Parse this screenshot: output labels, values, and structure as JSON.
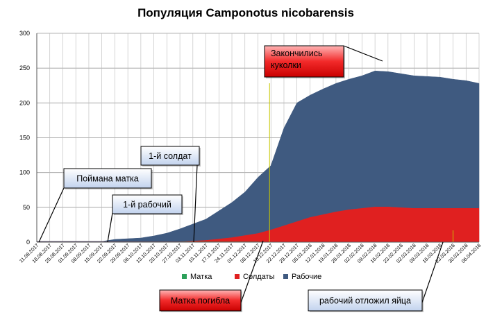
{
  "chart_data": {
    "type": "area",
    "title": "Популяция Camponotus nicobarensis",
    "ylim": [
      0,
      300
    ],
    "yticks": [
      0,
      50,
      100,
      150,
      200,
      250,
      300
    ],
    "grid": true,
    "legend_position": "bottom",
    "categories": [
      "11.08.2017",
      "18.08.2017",
      "25.08.2017",
      "01.09.2017",
      "08.09.2017",
      "15.09.2017",
      "22.09.2017",
      "29.09.2017",
      "06.10.2017",
      "13.10.2017",
      "20.10.2017",
      "27.10.2017",
      "03.11.2017",
      "10.11.2017",
      "17.11.2017",
      "24.11.2017",
      "01.12.2017",
      "08.12.2017",
      "15.12.2017",
      "22.12.2017",
      "29.12.2017",
      "05.01.2018",
      "12.01.2018",
      "19.01.2018",
      "26.01.2018",
      "02.02.2018",
      "09.02.2018",
      "16.02.2018",
      "23.02.2018",
      "02.03.2018",
      "09.03.2018",
      "16.03.2018",
      "23.03.2018",
      "30.03.2018",
      "06.04.2018"
    ],
    "series": [
      {
        "name": "Матка",
        "color": "#2ca05a",
        "values": [
          1,
          1,
          1,
          1,
          1,
          1,
          1,
          1,
          1,
          1,
          1,
          1,
          1,
          1,
          1,
          1,
          1,
          1,
          0,
          0,
          0,
          0,
          0,
          0,
          0,
          0,
          0,
          0,
          0,
          0,
          0,
          0,
          0,
          0,
          0
        ]
      },
      {
        "name": "Солдаты",
        "color": "#e02020",
        "values": [
          0,
          0,
          0,
          0,
          0,
          0,
          0,
          0,
          0,
          0,
          0,
          0,
          1,
          2,
          4,
          6,
          9,
          12,
          18,
          24,
          30,
          36,
          40,
          44,
          47,
          49,
          51,
          51,
          50,
          49,
          49,
          49,
          49,
          49,
          49
        ]
      },
      {
        "name": "Рабочие",
        "color": "#3f5a80",
        "values": [
          0,
          0,
          0,
          0,
          0,
          0,
          3,
          4,
          5,
          8,
          12,
          18,
          24,
          30,
          40,
          50,
          62,
          80,
          92,
          140,
          170,
          175,
          180,
          184,
          187,
          190,
          195,
          194,
          192,
          190,
          189,
          188,
          185,
          183,
          179
        ]
      }
    ],
    "annotations": [
      {
        "text": "Поймана матка",
        "style": "blue",
        "date": "11.08.2017"
      },
      {
        "text": "1-й рабочий",
        "style": "blue",
        "date": "22.09.2017"
      },
      {
        "text": "1-й солдат",
        "style": "blue",
        "date": "03.11.2017"
      },
      {
        "text": "Закончились\nкуколки",
        "style": "red",
        "date": "16.02.2018"
      },
      {
        "text": "Матка погибла",
        "style": "red",
        "date": "15.12.2017"
      },
      {
        "text": "рабочий отложил яйца",
        "style": "blue",
        "date": "30.03.2018"
      }
    ]
  }
}
